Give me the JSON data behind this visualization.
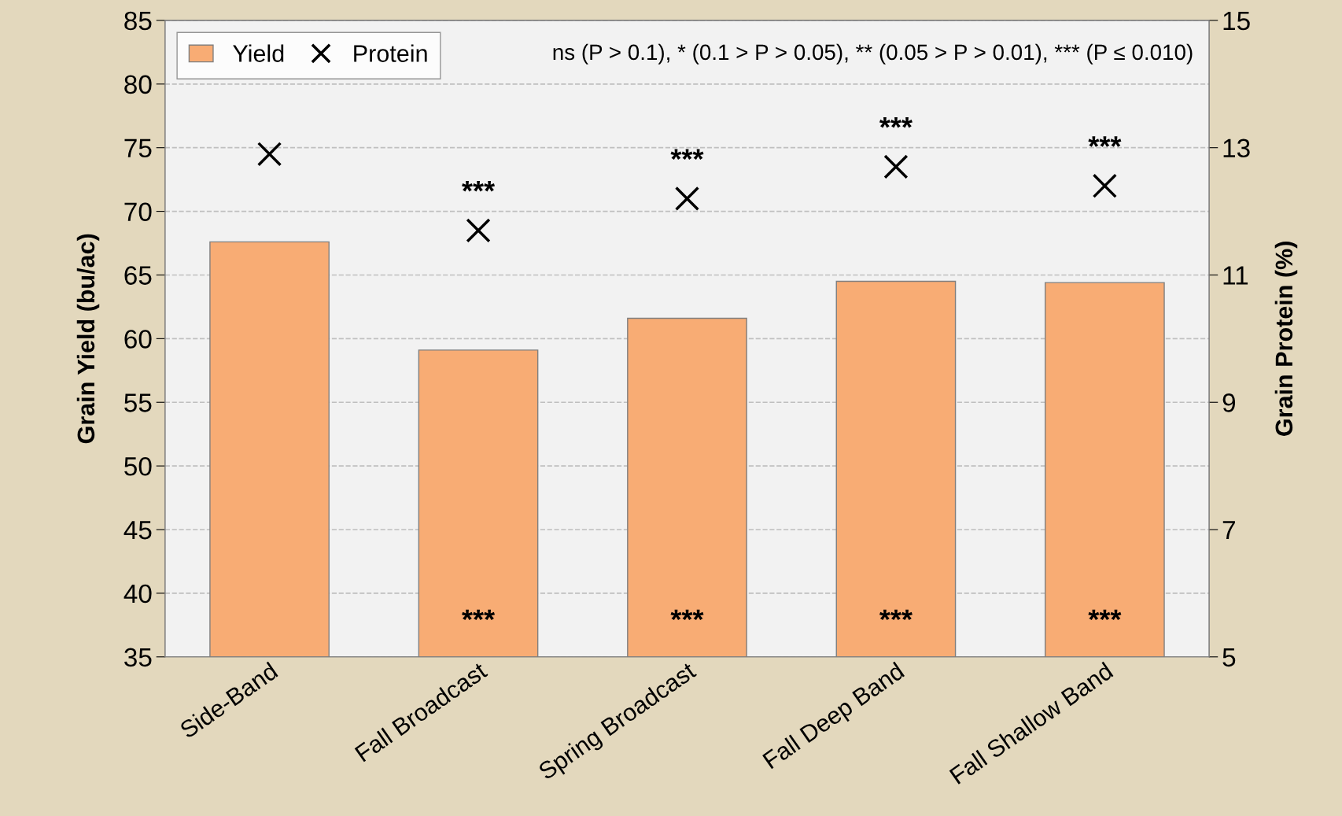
{
  "chart_data": {
    "type": "bar",
    "ylabel": "Grain Yield (bu/ac)",
    "y2label": "Grain Protein (%)",
    "categories": [
      "Side-Band",
      "Fall Broadcast",
      "Spring Broadcast",
      "Fall Deep Band",
      "Fall Shallow Band"
    ],
    "series": [
      {
        "name": "Yield",
        "color": "#f8ac74",
        "values": [
          67.6,
          59.1,
          61.6,
          64.5,
          64.4
        ]
      },
      {
        "name": "Protein",
        "type": "scatter",
        "axis": "y2",
        "marker": "cross",
        "color": "#000000",
        "values": [
          12.9,
          11.7,
          12.2,
          12.7,
          12.4
        ]
      }
    ],
    "ylim": [
      35,
      85
    ],
    "yticks": [
      35,
      40,
      45,
      50,
      55,
      60,
      65,
      70,
      75,
      80,
      85
    ],
    "y2lim": [
      5,
      15
    ],
    "y2ticks": [
      5,
      7,
      9,
      11,
      13,
      15
    ],
    "grid": "y",
    "legend": "top left",
    "annotations": [
      "ns (P > 0.1), * (0.1 > P > 0.05), ** (0.05 > P > 0.01), *** (P ≤ 0.010)",
      "***",
      "***",
      "***",
      "***",
      "***",
      "***",
      "***",
      "***"
    ]
  }
}
